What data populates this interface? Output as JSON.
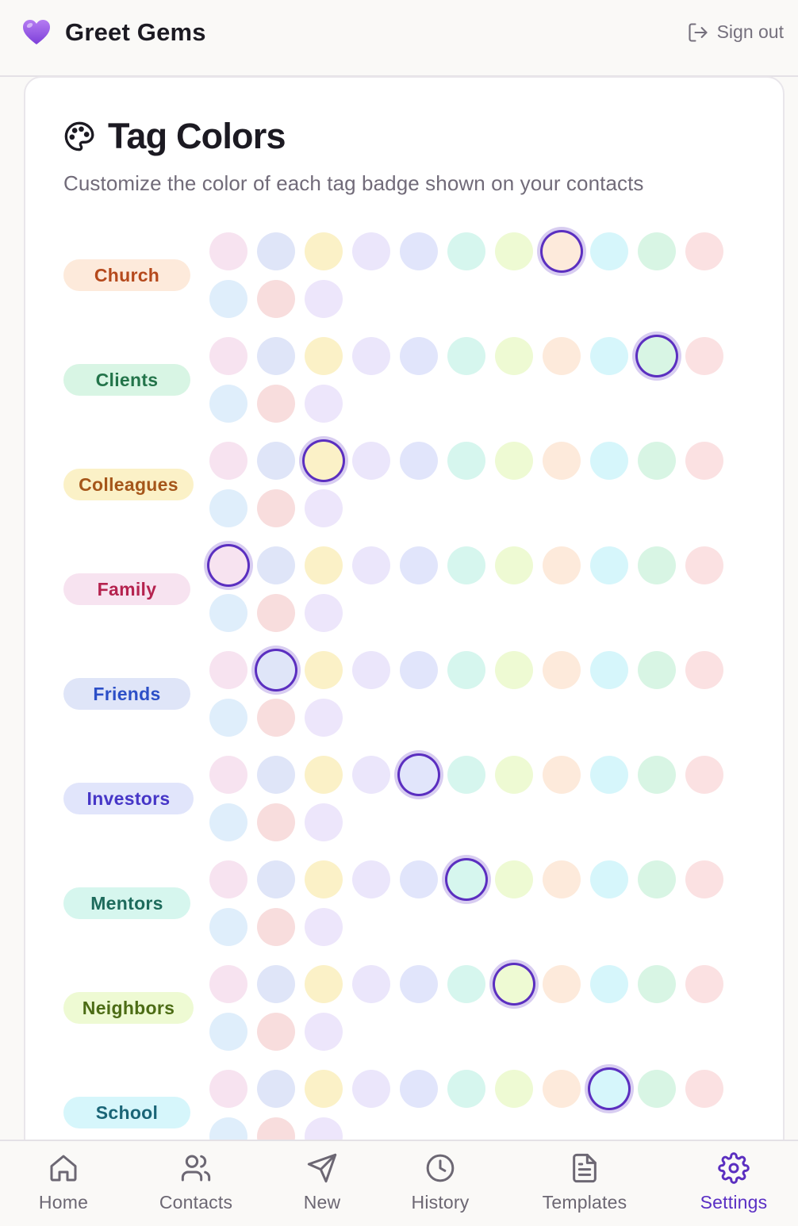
{
  "app": {
    "title": "Greet Gems",
    "brand_icon": "purple-heart-icon",
    "sign_out_label": "Sign out"
  },
  "card": {
    "title": "Tag Colors",
    "subtitle": "Customize the color of each tag badge shown on your contacts"
  },
  "palette": [
    {
      "name": "pink",
      "color": "#f7e3f0"
    },
    {
      "name": "blue",
      "color": "#dfe5f8"
    },
    {
      "name": "yellow",
      "color": "#fbf1c7"
    },
    {
      "name": "lavender",
      "color": "#ebe6fb"
    },
    {
      "name": "indigo",
      "color": "#e1e5fb"
    },
    {
      "name": "teal",
      "color": "#d6f6ee"
    },
    {
      "name": "lime",
      "color": "#eefad3"
    },
    {
      "name": "orange",
      "color": "#fdeadb"
    },
    {
      "name": "cyan",
      "color": "#d6f6fb"
    },
    {
      "name": "green",
      "color": "#d8f5e4"
    },
    {
      "name": "red",
      "color": "#fbe1e2"
    },
    {
      "name": "sky",
      "color": "#dfeefb"
    },
    {
      "name": "rose",
      "color": "#f8dddd"
    },
    {
      "name": "violet",
      "color": "#ede6fb"
    }
  ],
  "tags": [
    {
      "label": "Church",
      "bg": "#fdeadb",
      "fg": "#b5491c",
      "selected": 7
    },
    {
      "label": "Clients",
      "bg": "#d8f5e4",
      "fg": "#23744a",
      "selected": 9
    },
    {
      "label": "Colleagues",
      "bg": "#fbf1c7",
      "fg": "#a5561a",
      "selected": 2
    },
    {
      "label": "Family",
      "bg": "#f7e3f0",
      "fg": "#b5234f",
      "selected": 0
    },
    {
      "label": "Friends",
      "bg": "#dfe5f8",
      "fg": "#2c4fc7",
      "selected": 1
    },
    {
      "label": "Investors",
      "bg": "#e1e5fb",
      "fg": "#4636c7",
      "selected": 4
    },
    {
      "label": "Mentors",
      "bg": "#d6f6ee",
      "fg": "#1d6b5c",
      "selected": 5
    },
    {
      "label": "Neighbors",
      "bg": "#eefad3",
      "fg": "#4c6c15",
      "selected": 6
    },
    {
      "label": "School",
      "bg": "#d6f6fb",
      "fg": "#1a6577",
      "selected": 8
    }
  ],
  "nav": [
    {
      "label": "Home",
      "icon": "home-icon",
      "active": false
    },
    {
      "label": "Contacts",
      "icon": "users-icon",
      "active": false
    },
    {
      "label": "New",
      "icon": "send-icon",
      "active": false
    },
    {
      "label": "History",
      "icon": "clock-icon",
      "active": false
    },
    {
      "label": "Templates",
      "icon": "file-text-icon",
      "active": false
    },
    {
      "label": "Settings",
      "icon": "gear-icon",
      "active": true
    }
  ],
  "colors": {
    "accent": "#5b2fc0",
    "muted_text": "#716b79"
  }
}
